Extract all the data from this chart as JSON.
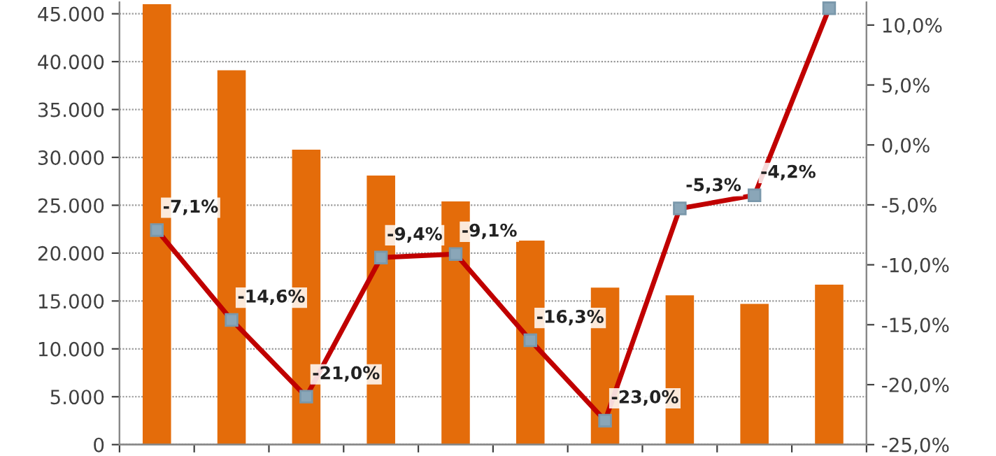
{
  "chart_data": {
    "type": "bar",
    "categories": [
      null,
      null,
      null,
      null,
      null,
      null,
      null,
      null,
      null,
      null
    ],
    "series": [
      {
        "color": "#e46c0a",
        "values": [
          46000,
          39100,
          30800,
          28100,
          25400,
          21300,
          16400,
          15600,
          14700,
          16700
        ]
      },
      {
        "type": "line",
        "axis": "y2",
        "color": "#c00000",
        "marker": "square",
        "values": [
          -7.1,
          -14.6,
          -21.0,
          -9.4,
          -9.1,
          -16.3,
          -23.0,
          -5.3,
          -4.2,
          11.4
        ],
        "value_labels": [
          "-7,1%",
          "-14,6%",
          "-21,0%",
          "-9,4%",
          "-9,1%",
          "-16,3%",
          "-23,0%",
          "-5,3%",
          "-4,2%",
          null
        ]
      }
    ],
    "ylim": [
      0,
      46200
    ],
    "yticks": [
      {
        "value": 0,
        "label": "0"
      },
      {
        "value": 5000,
        "label": "5.000"
      },
      {
        "value": 10000,
        "label": "10.000"
      },
      {
        "value": 15000,
        "label": "15.000"
      },
      {
        "value": 20000,
        "label": "20.000"
      },
      {
        "value": 25000,
        "label": "25.000"
      },
      {
        "value": 30000,
        "label": "30.000"
      },
      {
        "value": 35000,
        "label": "35.000"
      },
      {
        "value": 40000,
        "label": "40.000"
      },
      {
        "value": 45000,
        "label": "45.000"
      }
    ],
    "y2lim": [
      -25,
      11.9
    ],
    "y2ticks": [
      {
        "value": -25,
        "label": "-25,0%"
      },
      {
        "value": -20,
        "label": "-20,0%"
      },
      {
        "value": -15,
        "label": "-15,0%"
      },
      {
        "value": -10,
        "label": "-10,0%"
      },
      {
        "value": -5,
        "label": "-5,0%"
      },
      {
        "value": 0,
        "label": "0,0%"
      },
      {
        "value": 5,
        "label": "5,0%"
      },
      {
        "value": 10,
        "label": "10,0%"
      }
    ],
    "grid": "y",
    "legend": false
  }
}
